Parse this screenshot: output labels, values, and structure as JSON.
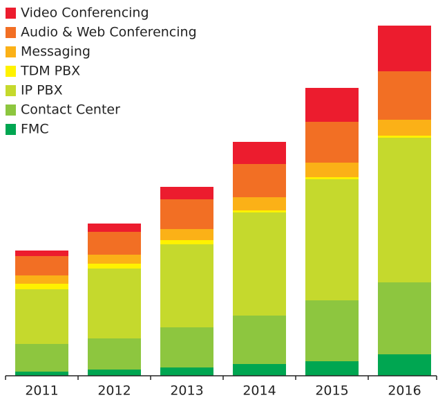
{
  "chart_data": {
    "type": "stacked_bar",
    "categories": [
      "2011",
      "2012",
      "2013",
      "2014",
      "2015",
      "2016"
    ],
    "series": [
      {
        "name": "Video Conferencing",
        "color": "#ec1c2e",
        "values": [
          8,
          12,
          18,
          32,
          49,
          66
        ]
      },
      {
        "name": "Audio & Web Conferencing",
        "color": "#f26f24",
        "values": [
          28,
          33,
          43,
          48,
          59,
          70
        ]
      },
      {
        "name": "Messaging",
        "color": "#fbb117",
        "values": [
          12,
          13,
          16,
          19,
          21,
          23
        ]
      },
      {
        "name": "TDM PBX",
        "color": "#fff200",
        "values": [
          8,
          7,
          6,
          3,
          3,
          3
        ]
      },
      {
        "name": "IP PBX",
        "color": "#c5d92d",
        "values": [
          79,
          101,
          120,
          149,
          175,
          209
        ]
      },
      {
        "name": "Contact Center",
        "color": "#8dc63f",
        "values": [
          40,
          45,
          58,
          70,
          88,
          104
        ]
      },
      {
        "name": "FMC",
        "color": "#00a651",
        "values": [
          6,
          9,
          12,
          17,
          21,
          31
        ]
      }
    ],
    "ylim": [
      0,
      506
    ],
    "legend": "upper left"
  }
}
